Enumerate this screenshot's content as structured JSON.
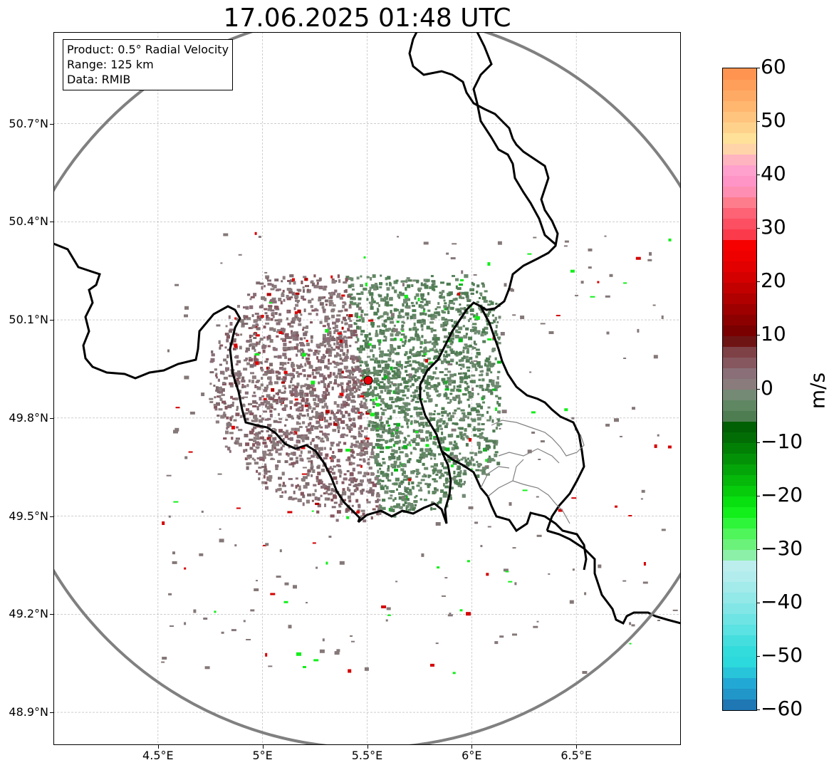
{
  "title": "17.06.2025 01:48 UTC",
  "info_box": {
    "product": "Product: 0.5° Radial Velocity",
    "range": "Range: 125 km",
    "data": "Data: RMIB"
  },
  "map": {
    "lon_range": [
      4.0,
      7.0
    ],
    "lat_range": [
      48.8,
      50.98
    ],
    "lat_ticks": [
      {
        "value": 50.7,
        "label": "50.7°N"
      },
      {
        "value": 50.4,
        "label": "50.4°N"
      },
      {
        "value": 50.1,
        "label": "50.1°N"
      },
      {
        "value": 49.8,
        "label": "49.8°N"
      },
      {
        "value": 49.5,
        "label": "49.5°N"
      },
      {
        "value": 49.2,
        "label": "49.2°N"
      },
      {
        "value": 48.9,
        "label": "48.9°N"
      }
    ],
    "lon_ticks": [
      {
        "value": 4.5,
        "label": "4.5°E"
      },
      {
        "value": 5.0,
        "label": "5°E"
      },
      {
        "value": 5.5,
        "label": "5.5°E"
      },
      {
        "value": 6.0,
        "label": "6°E"
      },
      {
        "value": 6.5,
        "label": "6.5°E"
      }
    ],
    "radar_site": {
      "lon": 5.505,
      "lat": 49.915
    },
    "range_km": 125,
    "colors": {
      "border": "#000000",
      "regional_border": "#808080",
      "range_ring": "#808080",
      "grid": "#b0b0b0",
      "site_marker": "#e8000b"
    }
  },
  "colorbar": {
    "unit": "m/s",
    "min": -60,
    "max": 60,
    "ticks": [
      {
        "value": 60,
        "label": "60"
      },
      {
        "value": 50,
        "label": "50"
      },
      {
        "value": 40,
        "label": "40"
      },
      {
        "value": 30,
        "label": "30"
      },
      {
        "value": 20,
        "label": "20"
      },
      {
        "value": 10,
        "label": "10"
      },
      {
        "value": 0,
        "label": "0"
      },
      {
        "value": -10,
        "label": "−10"
      },
      {
        "value": -20,
        "label": "−20"
      },
      {
        "value": -30,
        "label": "−30"
      },
      {
        "value": -40,
        "label": "−40"
      },
      {
        "value": -50,
        "label": "−50"
      },
      {
        "value": -60,
        "label": "−60"
      }
    ],
    "stops": [
      {
        "from": -60,
        "to": -58,
        "color": "#1f77b4"
      },
      {
        "from": -58,
        "to": -56,
        "color": "#2196c8"
      },
      {
        "from": -56,
        "to": -54,
        "color": "#22a8d4"
      },
      {
        "from": -54,
        "to": -52,
        "color": "#27c4da"
      },
      {
        "from": -52,
        "to": -50,
        "color": "#2cd9dc"
      },
      {
        "from": -50,
        "to": -48,
        "color": "#33dcdc"
      },
      {
        "from": -48,
        "to": -46,
        "color": "#45dede"
      },
      {
        "from": -46,
        "to": -44,
        "color": "#5be2e2"
      },
      {
        "from": -44,
        "to": -42,
        "color": "#6fe4e4"
      },
      {
        "from": -42,
        "to": -40,
        "color": "#83e6e6"
      },
      {
        "from": -40,
        "to": -38,
        "color": "#93e8e8"
      },
      {
        "from": -38,
        "to": -36,
        "color": "#a3eaea"
      },
      {
        "from": -36,
        "to": -34,
        "color": "#b3ecec"
      },
      {
        "from": -34,
        "to": -32,
        "color": "#bdeeee"
      },
      {
        "from": -32,
        "to": -30,
        "color": "#8cf0a8"
      },
      {
        "from": -30,
        "to": -28,
        "color": "#6bf27a"
      },
      {
        "from": -28,
        "to": -26,
        "color": "#4ff55a"
      },
      {
        "from": -26,
        "to": -24,
        "color": "#2ef53a"
      },
      {
        "from": -24,
        "to": -22,
        "color": "#12ef1a"
      },
      {
        "from": -22,
        "to": -20,
        "color": "#08e010"
      },
      {
        "from": -20,
        "to": -18,
        "color": "#06cc0c"
      },
      {
        "from": -18,
        "to": -16,
        "color": "#05b80a"
      },
      {
        "from": -16,
        "to": -14,
        "color": "#04a508"
      },
      {
        "from": -14,
        "to": -12,
        "color": "#039207"
      },
      {
        "from": -12,
        "to": -10,
        "color": "#028006"
      },
      {
        "from": -10,
        "to": -8,
        "color": "#026d05"
      },
      {
        "from": -8,
        "to": -6,
        "color": "#015f04"
      },
      {
        "from": -6,
        "to": -4,
        "color": "#4e7d52"
      },
      {
        "from": -4,
        "to": -2,
        "color": "#5f8762"
      },
      {
        "from": -2,
        "to": 0,
        "color": "#748a74"
      },
      {
        "from": 0,
        "to": 2,
        "color": "#8a7c7c"
      },
      {
        "from": 2,
        "to": 4,
        "color": "#8a6f78"
      },
      {
        "from": 4,
        "to": 6,
        "color": "#86575f"
      },
      {
        "from": 6,
        "to": 8,
        "color": "#7e4146"
      },
      {
        "from": 8,
        "to": 10,
        "color": "#6f1414"
      },
      {
        "from": 10,
        "to": 12,
        "color": "#7a0000"
      },
      {
        "from": 12,
        "to": 14,
        "color": "#8c0000"
      },
      {
        "from": 14,
        "to": 16,
        "color": "#9e0000"
      },
      {
        "from": 16,
        "to": 18,
        "color": "#b00000"
      },
      {
        "from": 18,
        "to": 20,
        "color": "#c20000"
      },
      {
        "from": 20,
        "to": 22,
        "color": "#d40000"
      },
      {
        "from": 22,
        "to": 24,
        "color": "#e20000"
      },
      {
        "from": 24,
        "to": 26,
        "color": "#ee0000"
      },
      {
        "from": 26,
        "to": 28,
        "color": "#f70000"
      },
      {
        "from": 28,
        "to": 30,
        "color": "#fb3a4c"
      },
      {
        "from": 30,
        "to": 32,
        "color": "#fc4f61"
      },
      {
        "from": 32,
        "to": 34,
        "color": "#fd6275"
      },
      {
        "from": 34,
        "to": 36,
        "color": "#fe7d8c"
      },
      {
        "from": 36,
        "to": 38,
        "color": "#ff8fb2"
      },
      {
        "from": 38,
        "to": 40,
        "color": "#ff94c7"
      },
      {
        "from": 40,
        "to": 42,
        "color": "#ffa1cc"
      },
      {
        "from": 42,
        "to": 44,
        "color": "#ffb4c0"
      },
      {
        "from": 44,
        "to": 46,
        "color": "#ffd4a8"
      },
      {
        "from": 46,
        "to": 48,
        "color": "#ffe19a"
      },
      {
        "from": 48,
        "to": 50,
        "color": "#ffd28c"
      },
      {
        "from": 50,
        "to": 52,
        "color": "#ffc47e"
      },
      {
        "from": 52,
        "to": 54,
        "color": "#ffb770"
      },
      {
        "from": 54,
        "to": 56,
        "color": "#ffaa64"
      },
      {
        "from": 56,
        "to": 58,
        "color": "#ff9f5a"
      },
      {
        "from": 58,
        "to": 60,
        "color": "#ff9450"
      }
    ]
  }
}
